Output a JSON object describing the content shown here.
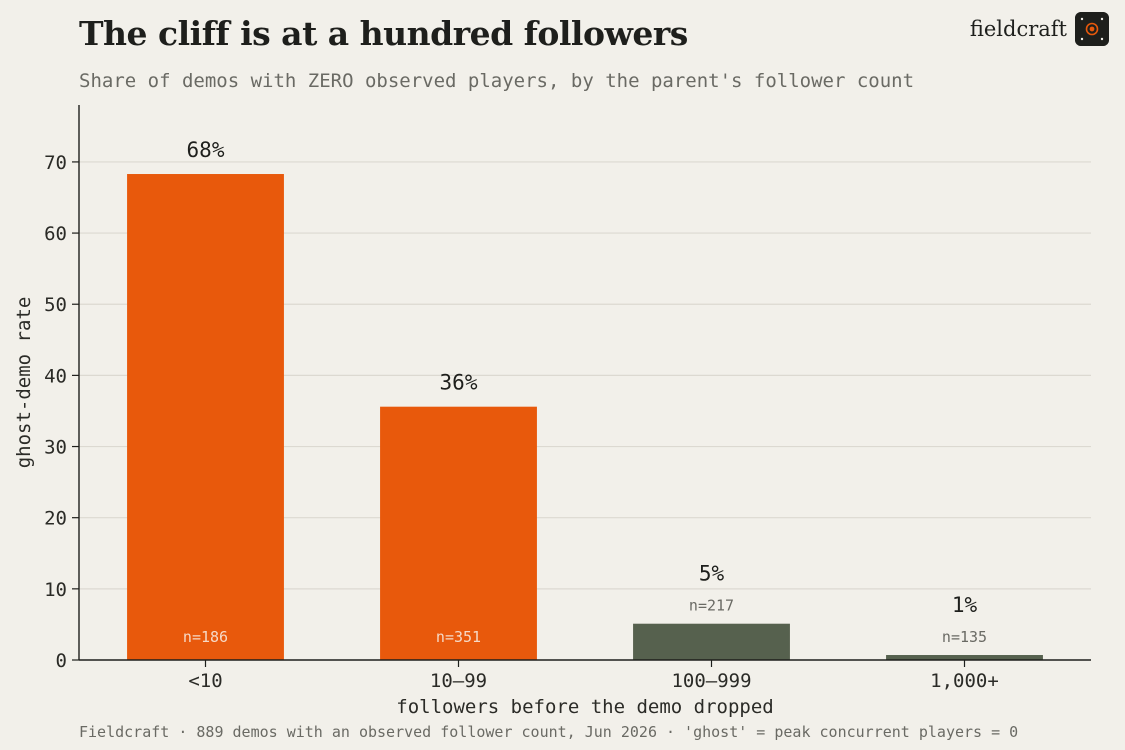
{
  "header": {
    "title": "The cliff is at a hundred followers",
    "subtitle": "Share of demos with ZERO observed players, by the parent's follower count"
  },
  "brand": {
    "name": "fieldcraft",
    "logo_icon": "speaker-icon",
    "logo_bg": "#1e1f1c",
    "logo_accent": "#e8590c"
  },
  "footer": {
    "source": "Fieldcraft · 889 demos with an observed follower count, Jun 2026 · 'ghost' = peak concurrent players = 0"
  },
  "colors": {
    "highlight": "#e8590c",
    "muted": "#56614e",
    "grid": "#dcd9d1",
    "axis": "#1e1f1c"
  },
  "chart_data": {
    "type": "bar",
    "title": "The cliff is at a hundred followers",
    "subtitle": "Share of demos with ZERO observed players, by the parent's follower count",
    "xlabel": "followers before the demo dropped",
    "ylabel": "ghost-demo rate",
    "categories": [
      "<10",
      "10–99",
      "100–999",
      "1,000+"
    ],
    "values": [
      68.3,
      35.6,
      5.1,
      0.7
    ],
    "value_labels": [
      "68%",
      "36%",
      "5%",
      "1%"
    ],
    "sample_labels": [
      "n=186",
      "n=351",
      "n=217",
      "n=135"
    ],
    "highlighted": [
      true,
      true,
      false,
      false
    ],
    "ylim": [
      0,
      78
    ],
    "yticks": [
      0,
      10,
      20,
      30,
      40,
      50,
      60,
      70
    ],
    "grid": true,
    "legend": "none"
  }
}
